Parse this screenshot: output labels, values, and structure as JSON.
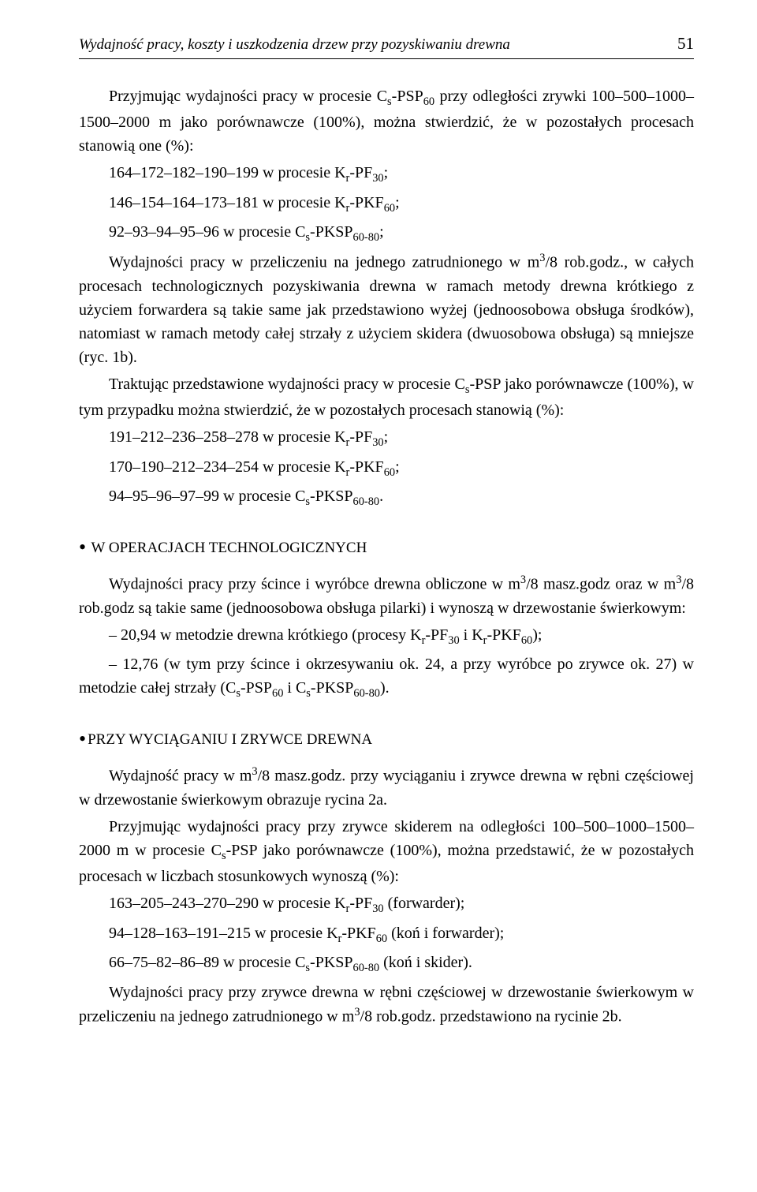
{
  "header": {
    "running_title": "Wydajność pracy, koszty i uszkodzenia drzew przy pozyskiwaniu drewna",
    "page_number": "51"
  },
  "body": {
    "para1_pre": "Przyjmując wydajności pracy w procesie C",
    "para1_sub1": "s",
    "para1_after_sub1": "-PSP",
    "para1_sub2": "60",
    "para1_post": " przy odległości zrywki 100–500–1000–1500–2000 m jako porównawcze (100%), można stwierdzić, że w pozostałych procesach stanowią one (%):",
    "list1_a_pre": "164–172–182–190–199 w procesie K",
    "list1_a_sub1": "r",
    "list1_a_mid": "-PF",
    "list1_a_sub2": "30",
    "list1_a_end": ";",
    "list1_b_pre": "146–154–164–173–181 w procesie K",
    "list1_b_sub1": "r",
    "list1_b_mid": "-PKF",
    "list1_b_sub2": "60",
    "list1_b_end": ";",
    "list1_c_pre": "92–93–94–95–96 w procesie C",
    "list1_c_sub1": "s",
    "list1_c_mid": "-PKSP",
    "list1_c_sub2": "60-80",
    "list1_c_end": ";",
    "para2_pre": "Wydajności pracy w przeliczeniu na jednego zatrudnionego w m",
    "para2_sup": "3",
    "para2_post": "/8 rob.godz., w całych procesach technologicznych pozyskiwania drewna w ramach metody drewna krótkiego z użyciem forwardera są takie same jak przedstawiono wyżej (jednoosobowa obsługa środków), natomiast w ramach metody całej strzały z użyciem skidera (dwuosobowa obsługa) są mniejsze (ryc. 1b).",
    "para3_pre": "Traktując przedstawione wydajności pracy w procesie C",
    "para3_sub": "s",
    "para3_post": "-PSP jako porównawcze (100%), w tym przypadku można stwierdzić, że w pozostałych procesach stanowią (%):",
    "list2_a_pre": "191–212–236–258–278 w procesie K",
    "list2_a_sub1": "r",
    "list2_a_mid": "-PF",
    "list2_a_sub2": "30",
    "list2_a_end": ";",
    "list2_b_pre": "170–190–212–234–254 w procesie K",
    "list2_b_sub1": "r",
    "list2_b_mid": "-PKF",
    "list2_b_sub2": "60",
    "list2_b_end": ";",
    "list2_c_pre": "94–95–96–97–99 w procesie C",
    "list2_c_sub1": "s",
    "list2_c_mid": "-PKSP",
    "list2_c_sub2": "60-80",
    "list2_c_end": ".",
    "heading1": "W OPERACJACH TECHNOLOGICZNYCH",
    "para4_pre": "Wydajności pracy przy ścince i wyróbce drewna obliczone w m",
    "para4_sup1": "3",
    "para4_mid1": "/8 masz.godz oraz w m",
    "para4_sup2": "3",
    "para4_post": "/8 rob.godz są takie same (jednoosobowa obsługa pilarki) i wynoszą w drzewostanie świerkowym:",
    "para4_item1_pre": "– 20,94 w metodzie drewna krótkiego (procesy K",
    "para4_item1_sub1": "r",
    "para4_item1_mid1": "-PF",
    "para4_item1_sub2": "30",
    "para4_item1_mid2": " i K",
    "para4_item1_sub3": "r",
    "para4_item1_mid3": "-PKF",
    "para4_item1_sub4": "60",
    "para4_item1_end": ");",
    "para4_item2_pre": "– 12,76 (w tym przy ścince i okrzesywaniu ok. 24, a przy wyróbce po zrywce ok. 27) w metodzie całej strzały (C",
    "para4_item2_sub1": "s",
    "para4_item2_mid1": "-PSP",
    "para4_item2_sub2": "60",
    "para4_item2_mid2": " i C",
    "para4_item2_sub3": "s",
    "para4_item2_mid3": "-PKSP",
    "para4_item2_sub4": "60-80",
    "para4_item2_end": ").",
    "heading2": "PRZY WYCIĄGANIU I ZRYWCE DREWNA",
    "para5_pre": "Wydajność pracy w m",
    "para5_sup": "3",
    "para5_post": "/8 masz.godz. przy wyciąganiu i zrywce drewna w rębni częściowej w drzewostanie świerkowym obrazuje rycina 2a.",
    "para6_pre": "Przyjmując wydajności pracy przy zrywce skiderem na odległości 100–500–1000–1500–2000 m w procesie C",
    "para6_sub": "s",
    "para6_post": "-PSP jako porównawcze (100%), można przedstawić, że w pozostałych procesach w liczbach stosunkowych wynoszą (%):",
    "list3_a_pre": "163–205–243–270–290 w procesie K",
    "list3_a_sub1": "r",
    "list3_a_mid": "-PF",
    "list3_a_sub2": "30",
    "list3_a_end": " (forwarder);",
    "list3_b_pre": "94–128–163–191–215 w procesie K",
    "list3_b_sub1": "r",
    "list3_b_mid": "-PKF",
    "list3_b_sub2": "60",
    "list3_b_end": " (koń i forwarder);",
    "list3_c_pre": "66–75–82–86–89 w procesie C",
    "list3_c_sub1": "s",
    "list3_c_mid": "-PKSP",
    "list3_c_sub2": "60-80",
    "list3_c_end": " (koń i skider).",
    "para7_pre": "Wydajności pracy przy zrywce drewna w rębni częściowej w drzewostanie świerkowym w przeliczeniu na jednego zatrudnionego w m",
    "para7_sup": "3",
    "para7_post": "/8 rob.godz. przedstawiono na rycinie 2b."
  }
}
